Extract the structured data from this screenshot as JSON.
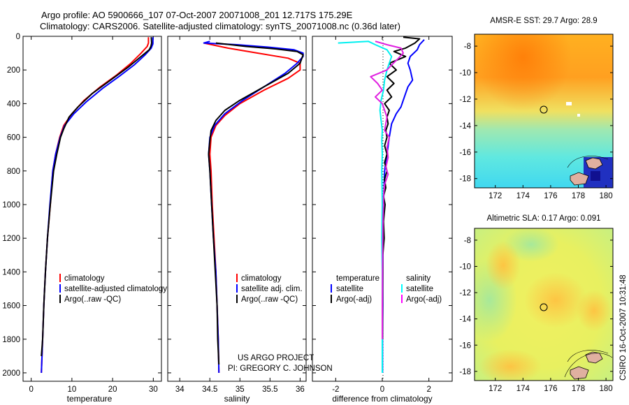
{
  "header": {
    "line1": "Argo profile: AO 5900666_107 07-Oct-2007 20071008_201 12.717S 175.29E",
    "line2": "Climatology: CARS2006. Satellite-adjusted climatology: synTS_20071008.nc (0.36d later)"
  },
  "credit": {
    "line1": "US ARGO PROJECT",
    "line2": "PI: GREGORY C. JOHNSON"
  },
  "footer_stamp": "CSIRO 16-Oct-2007 10:31:48",
  "colors": {
    "climatology": "#ff0000",
    "satellite": "#0000ff",
    "argo": "#000000",
    "sal_satellite": "#00ffff",
    "sal_argo": "#ff00ff"
  },
  "chart_data": [
    {
      "type": "line",
      "name": "temperature-profile",
      "xlabel": "temperature",
      "ylabel": "",
      "xlim": [
        -2,
        32
      ],
      "ylim": [
        2050,
        0
      ],
      "xticks": [
        "0",
        "10",
        "20",
        "30"
      ],
      "yticks": [
        "0",
        "200",
        "400",
        "600",
        "800",
        "1000",
        "1200",
        "1400",
        "1600",
        "1800",
        "2000"
      ],
      "legend": [
        "climatology",
        "satellite-adjusted climatology",
        "Argo(..raw -QC)"
      ],
      "series": [
        {
          "name": "climatology",
          "color": "red",
          "points": [
            [
              28.8,
              5
            ],
            [
              28.8,
              40
            ],
            [
              28.5,
              60
            ],
            [
              27,
              100
            ],
            [
              24.5,
              160
            ],
            [
              21,
              230
            ],
            [
              17,
              300
            ],
            [
              13,
              380
            ],
            [
              10,
              460
            ],
            [
              8,
              530
            ],
            [
              7,
              600
            ],
            [
              6,
              700
            ],
            [
              5.3,
              800
            ],
            [
              4.7,
              1000
            ],
            [
              4,
              1200
            ],
            [
              3.5,
              1400
            ],
            [
              3.1,
              1600
            ],
            [
              2.8,
              1800
            ],
            [
              2.5,
              2000
            ]
          ]
        },
        {
          "name": "satellite-adjusted climatology",
          "color": "blue",
          "points": [
            [
              29.9,
              5
            ],
            [
              29.9,
              45
            ],
            [
              29.5,
              70
            ],
            [
              28,
              110
            ],
            [
              25.3,
              170
            ],
            [
              21.5,
              240
            ],
            [
              17.5,
              310
            ],
            [
              13.5,
              390
            ],
            [
              10.5,
              460
            ],
            [
              8.2,
              530
            ],
            [
              7.1,
              600
            ],
            [
              6,
              700
            ],
            [
              5.3,
              800
            ],
            [
              4.6,
              1000
            ],
            [
              4,
              1200
            ],
            [
              3.5,
              1400
            ],
            [
              3.1,
              1600
            ],
            [
              2.8,
              1800
            ],
            [
              2.5,
              2000
            ]
          ]
        },
        {
          "name": "Argo(..raw -QC)",
          "color": "black",
          "points": [
            [
              29.5,
              5
            ],
            [
              29.6,
              40
            ],
            [
              29.4,
              60
            ],
            [
              29,
              80
            ],
            [
              27,
              120
            ],
            [
              24,
              180
            ],
            [
              19.5,
              260
            ],
            [
              15,
              340
            ],
            [
              11.5,
              420
            ],
            [
              9.3,
              480
            ],
            [
              8,
              550
            ],
            [
              7.2,
              600
            ],
            [
              6.3,
              700
            ],
            [
              5.5,
              800
            ],
            [
              4.7,
              1000
            ],
            [
              4,
              1200
            ],
            [
              3.5,
              1400
            ],
            [
              3.1,
              1600
            ],
            [
              2.8,
              1800
            ],
            [
              2.5,
              1900
            ]
          ]
        }
      ]
    },
    {
      "type": "line",
      "name": "salinity-profile",
      "xlabel": "salinity",
      "ylabel": "",
      "xlim": [
        33.8,
        36.1
      ],
      "ylim": [
        2050,
        0
      ],
      "xticks": [
        "34",
        "34.5",
        "35",
        "35.5",
        "36"
      ],
      "legend": [
        "climatology",
        "satellite adj. clim.",
        "Argo(..raw -QC)"
      ],
      "series": [
        {
          "name": "climatology",
          "color": "red",
          "points": [
            [
              34.4,
              40
            ],
            [
              34.8,
              70
            ],
            [
              35.3,
              100
            ],
            [
              35.8,
              130
            ],
            [
              36.0,
              160
            ],
            [
              36.0,
              200
            ],
            [
              35.8,
              250
            ],
            [
              35.4,
              320
            ],
            [
              35.0,
              400
            ],
            [
              34.75,
              470
            ],
            [
              34.6,
              530
            ],
            [
              34.52,
              600
            ],
            [
              34.5,
              700
            ],
            [
              34.52,
              800
            ],
            [
              34.54,
              1000
            ],
            [
              34.57,
              1200
            ],
            [
              34.6,
              1400
            ],
            [
              34.62,
              1600
            ],
            [
              34.64,
              1800
            ],
            [
              34.65,
              2000
            ]
          ]
        },
        {
          "name": "satellite adj. clim.",
          "color": "blue",
          "points": [
            [
              34.5,
              30
            ],
            [
              34.4,
              40
            ],
            [
              34.95,
              50
            ],
            [
              35.5,
              65
            ],
            [
              35.9,
              80
            ],
            [
              36.05,
              100
            ],
            [
              36.05,
              120
            ],
            [
              35.95,
              160
            ],
            [
              35.75,
              220
            ],
            [
              35.4,
              300
            ],
            [
              35.05,
              380
            ],
            [
              34.75,
              460
            ],
            [
              34.58,
              530
            ],
            [
              34.5,
              600
            ],
            [
              34.48,
              700
            ],
            [
              34.5,
              800
            ],
            [
              34.53,
              1000
            ],
            [
              34.56,
              1200
            ],
            [
              34.6,
              1400
            ],
            [
              34.62,
              1600
            ],
            [
              34.64,
              1800
            ],
            [
              34.65,
              2000
            ]
          ]
        },
        {
          "name": "Argo(..raw -QC)",
          "color": "black",
          "points": [
            [
              34.6,
              40
            ],
            [
              35.1,
              60
            ],
            [
              35.6,
              75
            ],
            [
              35.95,
              90
            ],
            [
              36.05,
              110
            ],
            [
              36.0,
              160
            ],
            [
              35.8,
              220
            ],
            [
              35.4,
              300
            ],
            [
              35.0,
              380
            ],
            [
              34.75,
              440
            ],
            [
              34.6,
              500
            ],
            [
              34.52,
              560
            ],
            [
              34.5,
              620
            ],
            [
              34.48,
              700
            ],
            [
              34.5,
              800
            ],
            [
              34.53,
              1000
            ],
            [
              34.56,
              1200
            ],
            [
              34.59,
              1400
            ],
            [
              34.62,
              1600
            ],
            [
              34.63,
              1800
            ],
            [
              34.65,
              1950
            ]
          ]
        }
      ]
    },
    {
      "type": "line",
      "name": "difference-from-climatology",
      "xlabel": "difference from climatology",
      "xlim": [
        -3,
        3
      ],
      "ylim": [
        2050,
        0
      ],
      "xticks": [
        "-2",
        "0",
        "2"
      ],
      "legend": [
        "temperature",
        "satellite",
        "Argo(-adj)",
        "salinity",
        "satellite",
        "Argo(-adj)"
      ],
      "series": [
        {
          "name": "temperature satellite",
          "color": "blue",
          "points": [
            [
              1.8,
              20
            ],
            [
              1.6,
              50
            ],
            [
              1.5,
              80
            ],
            [
              1.2,
              120
            ],
            [
              1.1,
              160
            ],
            [
              1.2,
              200
            ],
            [
              1.3,
              260
            ],
            [
              1.1,
              300
            ],
            [
              1.0,
              340
            ],
            [
              0.9,
              380
            ],
            [
              0.8,
              420
            ],
            [
              0.6,
              460
            ],
            [
              0.4,
              520
            ],
            [
              0.3,
              600
            ],
            [
              0.2,
              700
            ],
            [
              0.1,
              800
            ],
            [
              0.05,
              1000
            ],
            [
              0.03,
              1200
            ],
            [
              0.02,
              1400
            ],
            [
              0.02,
              1600
            ],
            [
              0.01,
              1800
            ],
            [
              0.01,
              2000
            ]
          ]
        },
        {
          "name": "temperature Argo(-adj)",
          "color": "black",
          "points": [
            [
              0.9,
              5
            ],
            [
              1.6,
              15
            ],
            [
              1.4,
              40
            ],
            [
              1.0,
              70
            ],
            [
              0.5,
              90
            ],
            [
              1.0,
              120
            ],
            [
              0.3,
              160
            ],
            [
              0.6,
              200
            ],
            [
              0.2,
              240
            ],
            [
              0.5,
              280
            ],
            [
              0.2,
              320
            ],
            [
              0.4,
              360
            ],
            [
              0.1,
              400
            ],
            [
              0.3,
              440
            ],
            [
              0.2,
              480
            ],
            [
              0.25,
              520
            ],
            [
              0.15,
              560
            ],
            [
              0.2,
              600
            ],
            [
              0.1,
              650
            ],
            [
              0.2,
              700
            ],
            [
              0.1,
              750
            ],
            [
              0.2,
              800
            ],
            [
              0.1,
              850
            ],
            [
              0.15,
              900
            ],
            [
              0.05,
              950
            ],
            [
              0.12,
              1000
            ],
            [
              0.05,
              1100
            ],
            [
              0.08,
              1200
            ],
            [
              0.02,
              1300
            ],
            [
              0.02,
              1400
            ],
            [
              0.01,
              1600
            ],
            [
              0.01,
              1800
            ]
          ]
        },
        {
          "name": "salinity satellite",
          "color": "cyan",
          "points": [
            [
              -1.9,
              40
            ],
            [
              -0.6,
              30
            ],
            [
              -0.3,
              50
            ],
            [
              0.2,
              80
            ],
            [
              0.4,
              120
            ],
            [
              0.3,
              160
            ],
            [
              0.2,
              200
            ],
            [
              0.1,
              260
            ],
            [
              0.05,
              320
            ],
            [
              -0.05,
              380
            ],
            [
              -0.1,
              440
            ],
            [
              -0.05,
              500
            ],
            [
              0.0,
              560
            ],
            [
              -0.02,
              620
            ],
            [
              0.0,
              700
            ],
            [
              -0.02,
              800
            ],
            [
              0.0,
              1000
            ],
            [
              -0.02,
              1200
            ],
            [
              0.0,
              1400
            ],
            [
              0.0,
              1600
            ],
            [
              0.0,
              1800
            ],
            [
              0.0,
              2000
            ]
          ]
        },
        {
          "name": "salinity Argo(-adj)",
          "color": "magenta",
          "points": [
            [
              -0.3,
              30
            ],
            [
              0.2,
              50
            ],
            [
              0.8,
              70
            ],
            [
              0.9,
              100
            ],
            [
              0.7,
              130
            ],
            [
              0.4,
              170
            ],
            [
              0.2,
              200
            ],
            [
              -0.5,
              240
            ],
            [
              -0.2,
              280
            ],
            [
              0.0,
              320
            ],
            [
              -0.3,
              360
            ],
            [
              0.0,
              400
            ],
            [
              0.1,
              440
            ],
            [
              0.2,
              480
            ],
            [
              0.15,
              520
            ],
            [
              0.1,
              560
            ],
            [
              0.3,
              600
            ],
            [
              0.2,
              660
            ],
            [
              0.25,
              720
            ],
            [
              0.15,
              780
            ],
            [
              0.25,
              820
            ],
            [
              0.1,
              880
            ],
            [
              0.05,
              950
            ],
            [
              0.05,
              1000
            ],
            [
              0.03,
              1100
            ],
            [
              0.02,
              1200
            ],
            [
              0.01,
              1400
            ],
            [
              0.0,
              1600
            ],
            [
              0.0,
              1800
            ]
          ]
        }
      ]
    },
    {
      "type": "heatmap",
      "name": "amsre-sst-map",
      "title": "AMSR-E SST: 29.7 Argo: 28.9",
      "xticks": [
        "172",
        "174",
        "176",
        "178",
        "180"
      ],
      "yticks": [
        "-8",
        "-10",
        "-12",
        "-14",
        "-16",
        "-18"
      ],
      "xlim": [
        170.5,
        180.5
      ],
      "ylim": [
        -18.7,
        -7.1
      ],
      "argo_position": {
        "lon": 175.29,
        "lat": -12.717
      }
    },
    {
      "type": "heatmap",
      "name": "altimetric-sla-map",
      "title": "Altimetric SLA: 0.17 Argo: 0.091",
      "xticks": [
        "172",
        "174",
        "176",
        "178",
        "180"
      ],
      "yticks": [
        "-8",
        "-10",
        "-12",
        "-14",
        "-16",
        "-18"
      ],
      "xlim": [
        170.5,
        180.5
      ],
      "ylim": [
        -18.7,
        -7.1
      ],
      "argo_position": {
        "lon": 175.29,
        "lat": -12.717
      }
    }
  ]
}
